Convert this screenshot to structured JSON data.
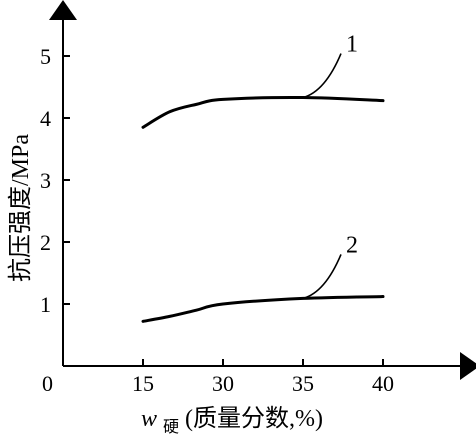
{
  "chart_data": {
    "type": "line",
    "title": "",
    "ylabel": "抗压强度/MPa",
    "xlabel": {
      "symbol": "w",
      "subscript": "硬",
      "rest": "(质量分数,%)"
    },
    "origin_label": "0",
    "xlim": [
      0,
      45
    ],
    "ylim": [
      0,
      5.8
    ],
    "x_ticks": [
      15,
      30,
      35,
      40
    ],
    "y_ticks": [
      1,
      2,
      3,
      4,
      5
    ],
    "grid": false,
    "series": [
      {
        "name": "1",
        "x": [
          15,
          20,
          25,
          30,
          35,
          40
        ],
        "y": [
          3.85,
          4.1,
          4.22,
          4.3,
          4.33,
          4.28
        ]
      },
      {
        "name": "2",
        "x": [
          15,
          20,
          25,
          30,
          35,
          40
        ],
        "y": [
          0.72,
          0.8,
          0.9,
          1.0,
          1.09,
          1.12
        ]
      }
    ]
  }
}
